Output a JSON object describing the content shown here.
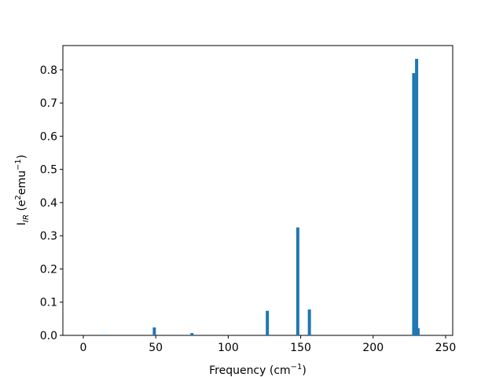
{
  "chart_data": {
    "type": "bar",
    "x": [
      15,
      49,
      75,
      127,
      148,
      156,
      228,
      230,
      231
    ],
    "values": [
      0.002,
      0.024,
      0.007,
      0.074,
      0.325,
      0.078,
      0.79,
      0.833,
      0.022
    ],
    "color": "#1f77b4",
    "xlim": [
      -14.1,
      254.9
    ],
    "ylim": [
      0,
      0.873
    ],
    "xticks": [
      0,
      50,
      100,
      150,
      200,
      250
    ],
    "yticks": [
      {
        "value": 0,
        "label": "0.0"
      },
      0.1,
      0.2,
      0.3,
      0.4,
      0.5,
      0.6,
      0.7,
      0.8
    ],
    "xlabel": [
      "Frequency (cm",
      "−1",
      ")"
    ],
    "ylabel": [
      "I",
      "IR",
      " (e",
      "2",
      "emu",
      "−1",
      ")"
    ]
  }
}
